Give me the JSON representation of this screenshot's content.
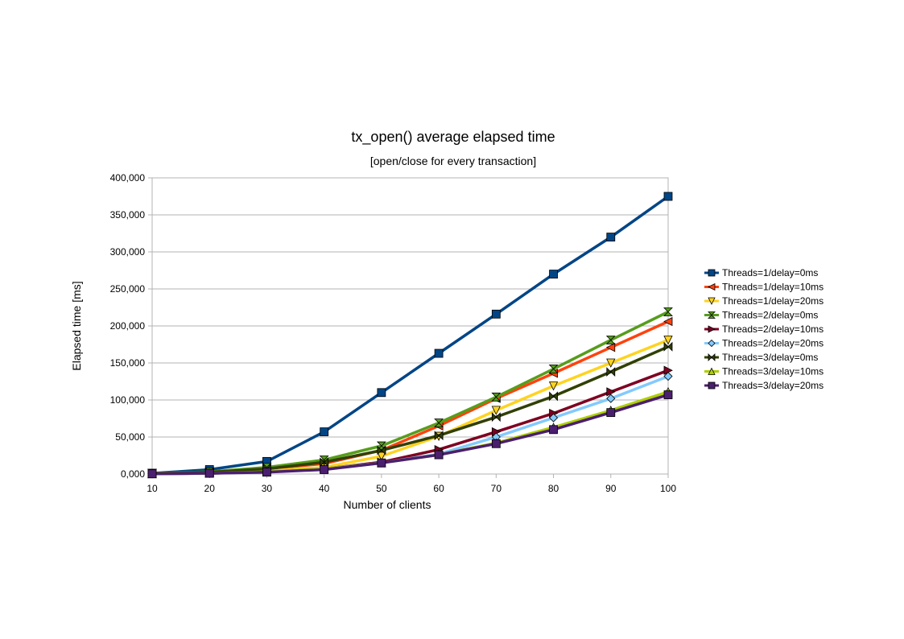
{
  "chart_data": {
    "type": "line",
    "title": "tx_open() average elapsed time",
    "subtitle": "[open/close for every transaction]",
    "xlabel": "Number of clients",
    "ylabel": "Elapsed time [ms]",
    "x": [
      10,
      20,
      30,
      40,
      50,
      60,
      70,
      80,
      90,
      100
    ],
    "x_tick_labels": [
      "10",
      "20",
      "30",
      "40",
      "50",
      "60",
      "70",
      "80",
      "90",
      "100"
    ],
    "ylim": [
      0,
      400000
    ],
    "y_tick_labels": [
      "0,000",
      "50,000",
      "100,000",
      "150,000",
      "200,000",
      "250,000",
      "300,000",
      "350,000",
      "400,000"
    ],
    "grid": true,
    "legend_position": "right",
    "series": [
      {
        "name": "Threads=1/delay=0ms",
        "color": "#004586",
        "marker": "square",
        "values": [
          1000,
          6000,
          17000,
          57000,
          110000,
          163000,
          216000,
          270000,
          320000,
          375000
        ]
      },
      {
        "name": "Threads=1/delay=10ms",
        "color": "#ff420e",
        "marker": "tri-left",
        "values": [
          500,
          2000,
          7000,
          14000,
          32000,
          65000,
          102000,
          136000,
          171000,
          206000
        ]
      },
      {
        "name": "Threads=1/delay=20ms",
        "color": "#ffd320",
        "marker": "tri-down",
        "values": [
          400,
          1000,
          4000,
          9000,
          24000,
          51000,
          86000,
          119000,
          150000,
          181000
        ]
      },
      {
        "name": "Threads=2/delay=0ms",
        "color": "#579d1c",
        "marker": "hourglass",
        "values": [
          1000,
          3000,
          9000,
          19000,
          38000,
          69000,
          104000,
          142000,
          181000,
          219000
        ]
      },
      {
        "name": "Threads=2/delay=10ms",
        "color": "#7e0021",
        "marker": "tri-right",
        "values": [
          300,
          1000,
          3000,
          7000,
          16000,
          33000,
          57000,
          82000,
          111000,
          140000
        ]
      },
      {
        "name": "Threads=2/delay=20ms",
        "color": "#83caff",
        "marker": "diamond",
        "values": [
          300,
          1000,
          3000,
          7000,
          15000,
          27000,
          50000,
          76000,
          102000,
          132000
        ]
      },
      {
        "name": "Threads=3/delay=0ms",
        "color": "#314004",
        "marker": "bowtie",
        "values": [
          800,
          2500,
          7000,
          16000,
          32000,
          52000,
          77000,
          105000,
          138000,
          172000
        ]
      },
      {
        "name": "Threads=3/delay=10ms",
        "color": "#aecf00",
        "marker": "tri-up",
        "values": [
          300,
          1000,
          3000,
          7000,
          15000,
          26000,
          42000,
          63000,
          86000,
          111000
        ]
      },
      {
        "name": "Threads=3/delay=20ms",
        "color": "#4b1f6f",
        "marker": "square",
        "values": [
          300,
          1000,
          2500,
          6000,
          15000,
          26000,
          41000,
          60000,
          83000,
          107000
        ]
      }
    ]
  }
}
